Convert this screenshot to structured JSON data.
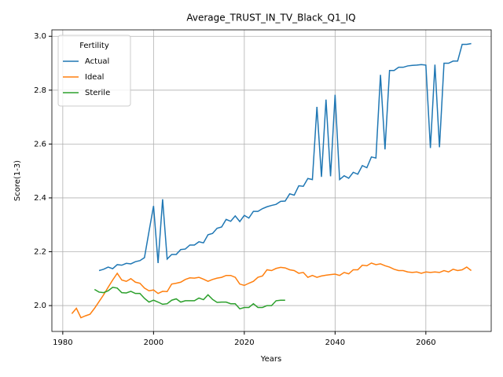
{
  "chart_data": {
    "type": "line",
    "title": "Average_TRUST_IN_TV_Black_Q1_IQ",
    "xlabel": "Years",
    "ylabel": "Score(1-3)",
    "legend_title": "Fertility",
    "legend": "upper left",
    "grid": true,
    "xlim": [
      1977.6,
      2074.4
    ],
    "ylim": [
      1.904,
      3.024
    ],
    "xticks": [
      1980,
      2000,
      2020,
      2040,
      2060
    ],
    "yticks": [
      {
        "value": 2,
        "label": "2.0"
      },
      2.2,
      2.4,
      2.6,
      2.8,
      {
        "value": 3,
        "label": "3.0"
      }
    ],
    "x": [
      1982,
      1983,
      1984,
      1985,
      1986,
      1987,
      1988,
      1989,
      1990,
      1991,
      1992,
      1993,
      1994,
      1995,
      1996,
      1997,
      1998,
      1999,
      2000,
      2001,
      2002,
      2003,
      2004,
      2005,
      2006,
      2007,
      2008,
      2009,
      2010,
      2011,
      2012,
      2013,
      2014,
      2015,
      2016,
      2017,
      2018,
      2019,
      2020,
      2021,
      2022,
      2023,
      2024,
      2025,
      2026,
      2027,
      2028,
      2029,
      2030,
      2031,
      2032,
      2033,
      2034,
      2035,
      2036,
      2037,
      2038,
      2039,
      2040,
      2041,
      2042,
      2043,
      2044,
      2045,
      2046,
      2047,
      2048,
      2049,
      2050,
      2051,
      2052,
      2053,
      2054,
      2055,
      2056,
      2057,
      2058,
      2059,
      2060,
      2061,
      2062,
      2063,
      2064,
      2065,
      2066,
      2067,
      2068,
      2069,
      2070
    ],
    "series": [
      {
        "name": "Actual",
        "color": "#1f77b4",
        "values": [
          null,
          null,
          null,
          null,
          null,
          null,
          2.13,
          2.135,
          2.143,
          2.137,
          2.152,
          2.15,
          2.157,
          2.155,
          2.163,
          2.167,
          2.178,
          2.275,
          2.37,
          2.158,
          2.395,
          2.173,
          2.19,
          2.19,
          2.208,
          2.21,
          2.225,
          2.225,
          2.237,
          2.233,
          2.263,
          2.268,
          2.287,
          2.292,
          2.32,
          2.313,
          2.333,
          2.312,
          2.335,
          2.325,
          2.35,
          2.35,
          2.36,
          2.367,
          2.372,
          2.376,
          2.387,
          2.388,
          2.415,
          2.41,
          2.445,
          2.443,
          2.472,
          2.468,
          2.738,
          2.478,
          2.765,
          2.48,
          2.783,
          2.468,
          2.482,
          2.473,
          2.495,
          2.488,
          2.52,
          2.512,
          2.552,
          2.548,
          2.857,
          2.58,
          2.873,
          2.873,
          2.885,
          2.885,
          2.89,
          2.892,
          2.893,
          2.895,
          2.893,
          2.585,
          2.895,
          2.588,
          2.9,
          2.9,
          2.908,
          2.908,
          2.97,
          2.97,
          2.973
        ]
      },
      {
        "name": "Ideal",
        "color": "#ff7f0e",
        "values": [
          1.97,
          1.99,
          1.955,
          1.962,
          1.968,
          1.99,
          2.015,
          2.04,
          2.068,
          2.095,
          2.12,
          2.095,
          2.09,
          2.1,
          2.087,
          2.083,
          2.065,
          2.055,
          2.058,
          2.045,
          2.053,
          2.052,
          2.08,
          2.083,
          2.087,
          2.097,
          2.103,
          2.102,
          2.105,
          2.098,
          2.09,
          2.097,
          2.102,
          2.105,
          2.112,
          2.112,
          2.105,
          2.08,
          2.075,
          2.083,
          2.09,
          2.105,
          2.11,
          2.133,
          2.13,
          2.138,
          2.142,
          2.14,
          2.133,
          2.13,
          2.12,
          2.123,
          2.105,
          2.112,
          2.105,
          2.11,
          2.113,
          2.115,
          2.117,
          2.112,
          2.123,
          2.118,
          2.133,
          2.133,
          2.15,
          2.148,
          2.158,
          2.152,
          2.155,
          2.148,
          2.143,
          2.135,
          2.13,
          2.13,
          2.125,
          2.123,
          2.125,
          2.12,
          2.125,
          2.123,
          2.125,
          2.123,
          2.13,
          2.125,
          2.135,
          2.13,
          2.133,
          2.143,
          2.13
        ]
      },
      {
        "name": "Sterile",
        "color": "#2ca02c",
        "values": [
          null,
          null,
          null,
          null,
          null,
          2.06,
          2.05,
          2.048,
          2.055,
          2.068,
          2.065,
          2.048,
          2.047,
          2.053,
          2.045,
          2.045,
          2.027,
          2.013,
          2.02,
          2.013,
          2.005,
          2.007,
          2.02,
          2.025,
          2.013,
          2.018,
          2.018,
          2.018,
          2.028,
          2.022,
          2.04,
          2.023,
          2.012,
          2.013,
          2.013,
          2.007,
          2.007,
          1.988,
          1.993,
          1.993,
          2.007,
          1.993,
          1.993,
          2.0,
          2.0,
          2.018,
          2.02,
          2.02,
          null,
          null,
          null,
          null,
          null,
          null,
          null,
          null,
          null,
          null,
          null,
          null,
          null,
          null,
          null,
          null,
          null,
          null,
          null,
          null,
          null,
          null,
          null,
          null,
          null,
          null,
          null,
          null,
          null,
          null,
          null,
          null,
          null,
          null,
          null,
          null,
          null,
          null,
          null,
          null,
          null
        ]
      }
    ]
  }
}
